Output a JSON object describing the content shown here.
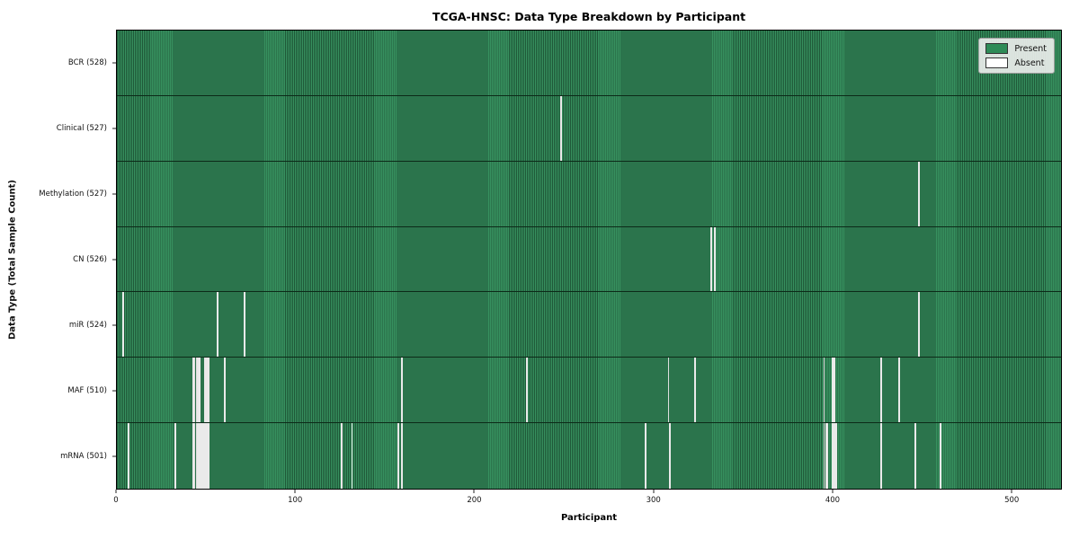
{
  "chart_data": {
    "type": "heatmap",
    "title": "TCGA-HNSC: Data Type Breakdown by Participant",
    "xlabel": "Participant",
    "ylabel": "Data Type (Total Sample Count)",
    "legend": [
      "Present",
      "Absent"
    ],
    "legend_position": "upper right",
    "colors": {
      "present": "#2e8b57",
      "present_edge": "#1f5838",
      "absent": "#f6f6f6"
    },
    "total_participants": 528,
    "x_ticks": [
      0,
      100,
      200,
      300,
      400,
      500
    ],
    "rows": [
      {
        "label": "BCR (528)",
        "count": 528,
        "missing": []
      },
      {
        "label": "Clinical (527)",
        "count": 527,
        "missing": [
          248
        ]
      },
      {
        "label": "Methylation (527)",
        "count": 527,
        "missing": [
          448
        ]
      },
      {
        "label": "CN (526)",
        "count": 526,
        "missing": [
          332,
          334
        ]
      },
      {
        "label": "miR (524)",
        "count": 524,
        "missing": [
          3,
          56,
          71,
          448
        ]
      },
      {
        "label": "MAF (510)",
        "count": 510,
        "missing": [
          42,
          43,
          44,
          45,
          46,
          49,
          50,
          51,
          60,
          159,
          229,
          308,
          323,
          395,
          400,
          401,
          427,
          437
        ]
      },
      {
        "label": "mRNA (501)",
        "count": 501,
        "missing": [
          6,
          32,
          42,
          43,
          44,
          45,
          46,
          47,
          48,
          49,
          50,
          51,
          125,
          131,
          157,
          159,
          295,
          309,
          395,
          396,
          397,
          400,
          401,
          402,
          427,
          446,
          460
        ]
      }
    ]
  }
}
